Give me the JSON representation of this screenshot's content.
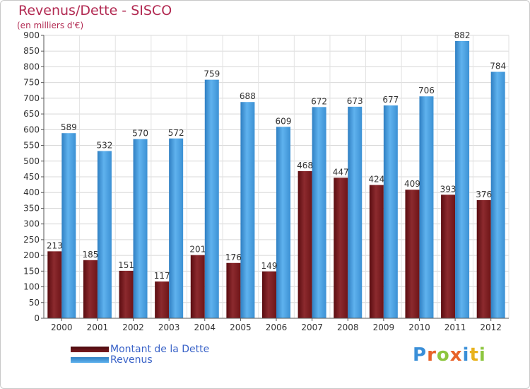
{
  "title": "Revenus/Dette - SISCO",
  "subtitle": "(en milliers d'€)",
  "logo": {
    "letters": [
      {
        "ch": "P",
        "color": "#3a8fd8"
      },
      {
        "ch": "r",
        "color": "#e8632a"
      },
      {
        "ch": "o",
        "color": "#8dc63f"
      },
      {
        "ch": "x",
        "color": "#e8632a"
      },
      {
        "ch": "i",
        "color": "#3a8fd8"
      },
      {
        "ch": "t",
        "color": "#e8b21d"
      },
      {
        "ch": "i",
        "color": "#8dc63f"
      }
    ]
  },
  "chart_data": {
    "type": "bar",
    "categories": [
      "2000",
      "2001",
      "2002",
      "2003",
      "2004",
      "2005",
      "2006",
      "2007",
      "2008",
      "2009",
      "2010",
      "2011",
      "2012"
    ],
    "series": [
      {
        "name": "Montant de la Dette",
        "color": "#7a1a1f",
        "values": [
          213,
          185,
          151,
          117,
          201,
          176,
          149,
          468,
          447,
          424,
          409,
          393,
          376
        ]
      },
      {
        "name": "Revenus",
        "color": "#4aa3e6",
        "values": [
          589,
          532,
          570,
          572,
          759,
          688,
          609,
          672,
          673,
          677,
          706,
          882,
          784
        ]
      }
    ],
    "ylim": [
      0,
      900
    ],
    "ytick_step": 50,
    "grid": true,
    "legend_position": "bottom-left"
  }
}
